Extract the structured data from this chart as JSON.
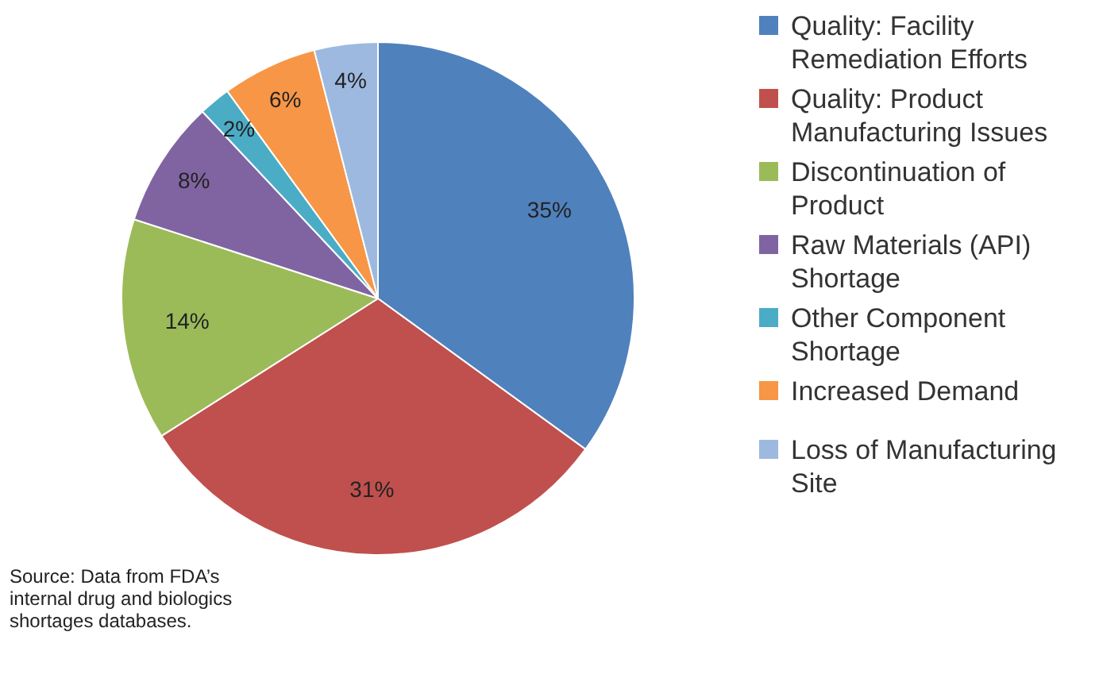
{
  "chart_data": {
    "type": "pie",
    "categories": [
      "Quality: Facility Remediation Efforts",
      "Quality: Product Manufacturing Issues",
      "Discontinuation of Product",
      "Raw Materials (API) Shortage",
      "Other Component Shortage",
      "Increased Demand",
      "Loss of Manufacturing Site"
    ],
    "values": [
      35,
      31,
      14,
      8,
      2,
      6,
      4
    ],
    "colors": [
      "#4f81bd",
      "#c0504d",
      "#9bbb59",
      "#8064a2",
      "#4bacc6",
      "#f79646",
      "#9db9e0"
    ],
    "value_labels": [
      "35%",
      "31%",
      "14%",
      "8%",
      "2%",
      "6%",
      "4%"
    ],
    "legend": "right",
    "annotations": [
      "Source: Data from FDA’s internal drug and biologics shortages databases."
    ]
  }
}
